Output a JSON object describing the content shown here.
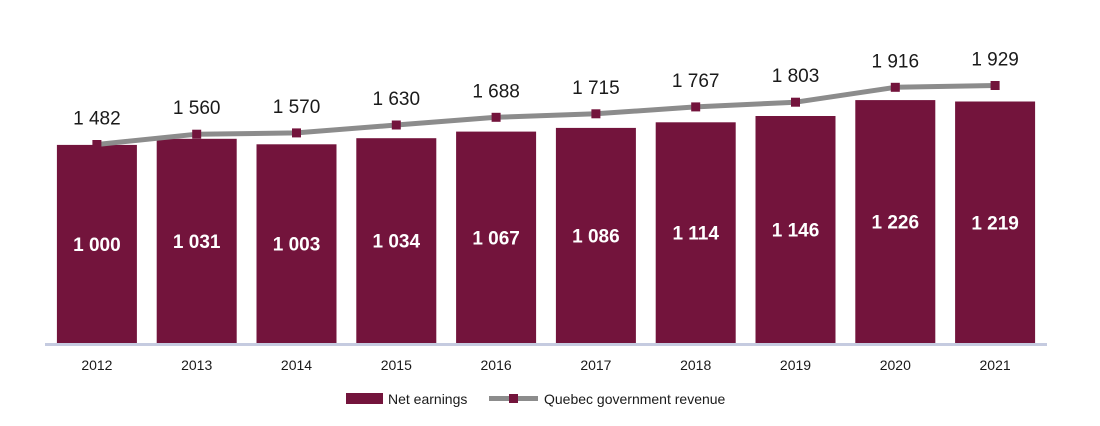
{
  "colors": {
    "bar": "#73143c",
    "line": "#8c8c8c",
    "marker": "#73143c",
    "axis": "#c5cbe0"
  },
  "chart_data": {
    "type": "bar",
    "categories": [
      "2012",
      "2013",
      "2014",
      "2015",
      "2016",
      "2017",
      "2018",
      "2019",
      "2020",
      "2021"
    ],
    "series": [
      {
        "name": "Net earnings",
        "type": "bar",
        "values": [
          1000,
          1031,
          1003,
          1034,
          1067,
          1086,
          1114,
          1146,
          1226,
          1219
        ],
        "labels": [
          "1 000",
          "1 031",
          "1 003",
          "1 034",
          "1 067",
          "1 086",
          "1 114",
          "1 146",
          "1 226",
          "1 219"
        ]
      },
      {
        "name": "Quebec government revenue",
        "type": "line",
        "values": [
          1482,
          1560,
          1570,
          1630,
          1688,
          1715,
          1767,
          1803,
          1916,
          1929
        ],
        "labels": [
          "1 482",
          "1 560",
          "1 570",
          "1 630",
          "1 688",
          "1 715",
          "1 767",
          "1 803",
          "1 916",
          "1 929"
        ]
      }
    ],
    "title": "",
    "xlabel": "",
    "ylabel": "",
    "legend": "bottom",
    "grid": false
  }
}
